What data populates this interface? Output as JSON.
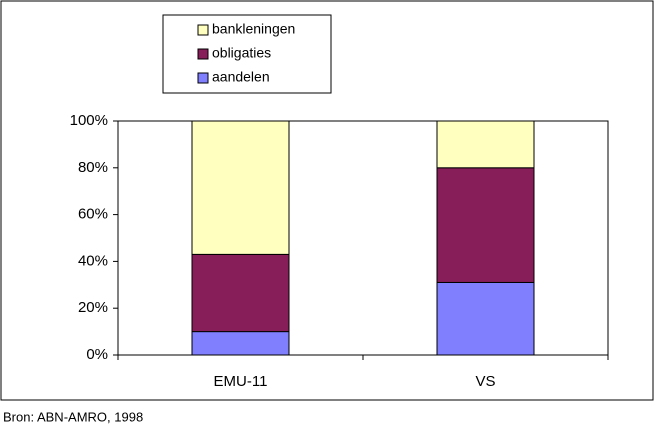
{
  "chart_data": {
    "type": "stacked_bar",
    "categories": [
      "EMU-11",
      "VS"
    ],
    "series": [
      {
        "name": "aandelen",
        "color": "#8080ff",
        "values": [
          10,
          31
        ]
      },
      {
        "name": "obligaties",
        "color": "#871e5a",
        "values": [
          33,
          49
        ]
      },
      {
        "name": "bankleningen",
        "color": "#ffffc0",
        "values": [
          57,
          20
        ]
      }
    ],
    "ylim": [
      0,
      100
    ],
    "yticks": [
      {
        "value": 0,
        "label": "0%"
      },
      {
        "value": 20,
        "label": "20%"
      },
      {
        "value": 40,
        "label": "40%"
      },
      {
        "value": 60,
        "label": "60%"
      },
      {
        "value": 80,
        "label": "80%"
      },
      {
        "value": 100,
        "label": "100%"
      }
    ],
    "legend": "top",
    "source": "Bron: ABN-AMRO, 1998"
  }
}
